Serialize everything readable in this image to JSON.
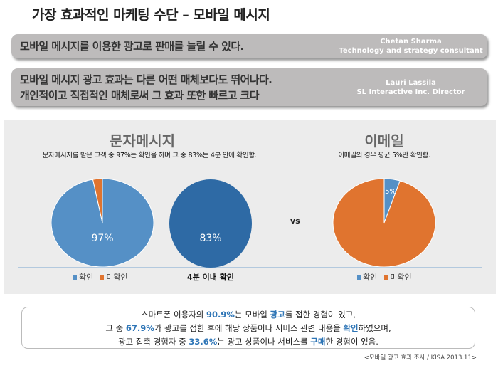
{
  "title": "가장 효과적인 마케팅 수단 – 모바일 메시지",
  "quotes": [
    {
      "text": "모바일 메시지를 이용한 광고로 판매를 늘릴 수 있다.",
      "name": "Chetan Sharma",
      "role": "Technology and strategy consultant"
    },
    {
      "text": "모바일 메시지 광고 효과는 다른 어떤 매체보다도 뛰어나다.",
      "text2": "개인적이고 직접적인 매체로써 그 효과 또한 빠르고 크다",
      "name": "Lauri Lassila",
      "role": "SL Interactive Inc. Director"
    }
  ],
  "sms": {
    "heading": "문자메시지",
    "subtitle": "문자메시지를 받은 고객 중 97%는 확인을 하며 그 중 83%는 4분 안에 확인함."
  },
  "email": {
    "heading": "이메일",
    "subtitle": "이메일의 경우 평균 5%만 확인함."
  },
  "vs": "vs",
  "colors": {
    "confirmed": "#5590c6",
    "unconfirmed": "#e0742f",
    "within4": "#2e6aa5"
  },
  "chart_data": [
    {
      "type": "pie",
      "title": "문자메시지",
      "categories": [
        "확인",
        "미확인"
      ],
      "values": [
        97,
        3
      ],
      "labels": [
        "97%",
        ""
      ],
      "legend": "bottom"
    },
    {
      "type": "pie",
      "title": "4분 이내 확인",
      "categories": [
        "4분 이내 확인"
      ],
      "values": [
        83
      ],
      "labels": [
        "83%"
      ],
      "legend": "bottom"
    },
    {
      "type": "pie",
      "title": "이메일",
      "categories": [
        "확인",
        "미확인"
      ],
      "values": [
        5,
        95
      ],
      "labels": [
        "5%",
        ""
      ],
      "legend": "bottom"
    }
  ],
  "facts": {
    "line1": [
      "스마트폰 이용자의 ",
      "90.9%",
      "는 모바일 ",
      "광고",
      "를 접한 경험이 있고,"
    ],
    "line2": [
      "그 중 ",
      "67.9%",
      "가 광고를 접한 후에 해당 상품이나 서비스 관련 내용을 ",
      "확인",
      "하였으며,"
    ],
    "line3": [
      "광고 접촉 경험자 중 ",
      "33.6%",
      "는 광고 상품이나 서비스를 ",
      "구매",
      "한 경험이 있음."
    ]
  },
  "source": "<모바일 광고 효과 조사 / KISA 2013.11>"
}
